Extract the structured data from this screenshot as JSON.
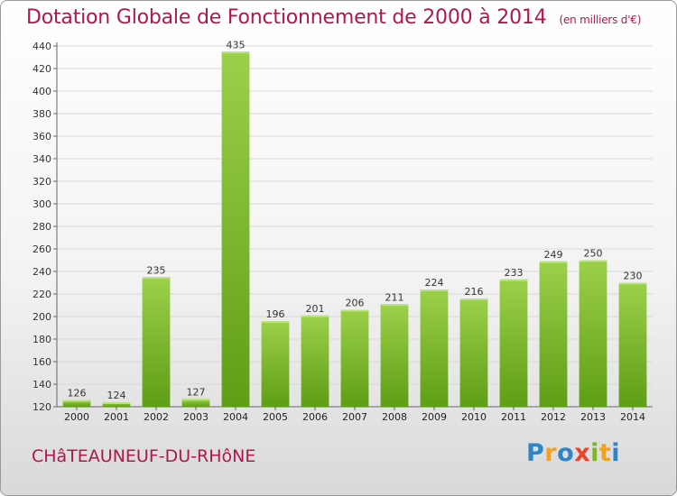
{
  "chart_data": {
    "type": "bar",
    "title": "Dotation Globale de Fonctionnement de 2000 à 2014",
    "subtitle": "(en milliers d'€)",
    "categories": [
      "2000",
      "2001",
      "2002",
      "2003",
      "2004",
      "2005",
      "2006",
      "2007",
      "2008",
      "2009",
      "2010",
      "2011",
      "2012",
      "2013",
      "2014"
    ],
    "values": [
      126,
      124,
      235,
      127,
      435,
      196,
      201,
      206,
      211,
      224,
      216,
      233,
      249,
      250,
      230
    ],
    "ylim": [
      120,
      440
    ],
    "yticks": [
      120,
      140,
      160,
      180,
      200,
      220,
      240,
      260,
      280,
      300,
      320,
      340,
      360,
      380,
      400,
      420,
      440
    ],
    "grid": true,
    "bar_color_top": "#9dd04a",
    "bar_color_bottom": "#5e9e14",
    "legend": "none"
  },
  "footer": {
    "commune": "CHâTEAUNEUF-DU-RHôNE",
    "logo_letters": [
      "P",
      "r",
      "o",
      "x",
      "i",
      "t",
      "i"
    ],
    "logo_colors": [
      "#2e86c8",
      "#f5a21b",
      "#2e86c8",
      "#e8452c",
      "#7ab52a",
      "#f5a21b",
      "#2e86c8"
    ]
  },
  "colors": {
    "title": "#b0174f",
    "grid": "#d8d8d8"
  }
}
